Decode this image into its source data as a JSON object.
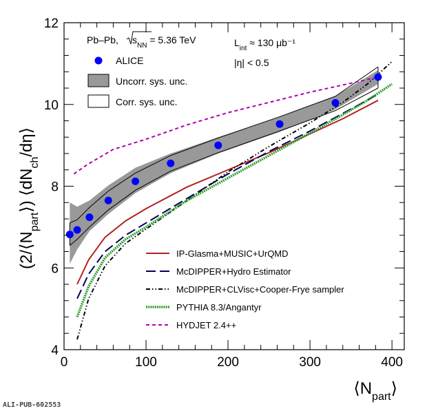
{
  "chart_data": {
    "type": "line",
    "title": "",
    "system_label": "Pb–Pb,",
    "energy_label": "s_NN = 5.36 TeV",
    "lumi_label": "L_int ≈ 130 μb⁻¹",
    "eta_label": "|η| < 0.5",
    "xlabel": "⟨N_part⟩",
    "ylabel": "(2/⟨N_part⟩) ⟨dN_ch/dη⟩",
    "xlim": [
      0,
      415
    ],
    "ylim": [
      4,
      12
    ],
    "x_ticks": [
      0,
      100,
      200,
      300,
      400
    ],
    "y_ticks": [
      4,
      6,
      8,
      10,
      12
    ],
    "grid": false,
    "legend_position": "top-left",
    "alice": {
      "name": "ALICE",
      "color": "#0000ff",
      "x": [
        7,
        16,
        31,
        54,
        87,
        130,
        188,
        263,
        331,
        383
      ],
      "y": [
        6.82,
        6.93,
        7.24,
        7.65,
        8.12,
        8.56,
        9.0,
        9.52,
        10.04,
        10.67
      ]
    },
    "uncorr_band": {
      "name": "Uncorr. sys. unc.",
      "color": "#999999",
      "x": [
        7,
        16,
        31,
        54,
        87,
        130,
        188,
        263,
        331,
        383
      ],
      "low": [
        6.1,
        6.45,
        6.9,
        7.32,
        7.83,
        8.32,
        8.8,
        9.33,
        9.88,
        10.5
      ],
      "high": [
        7.6,
        7.5,
        7.65,
        8.02,
        8.45,
        8.8,
        9.2,
        9.7,
        10.2,
        10.84
      ]
    },
    "corr_band": {
      "name": "Corr. sys. unc.",
      "x": [
        7,
        16,
        31,
        54,
        87,
        130,
        188,
        263,
        331,
        383
      ],
      "low": [
        6.55,
        6.7,
        7.0,
        7.42,
        7.9,
        8.37,
        8.82,
        9.35,
        9.85,
        10.4
      ],
      "high": [
        7.1,
        7.18,
        7.48,
        7.88,
        8.32,
        8.75,
        9.18,
        9.7,
        10.2,
        10.92
      ]
    },
    "series": [
      {
        "name": "IP-Glasma+MUSIC+UrQMD",
        "color": "#b22222",
        "style": "solid",
        "x": [
          16,
          30,
          50,
          75,
          100,
          150,
          200,
          250,
          300,
          340,
          383
        ],
        "y": [
          5.6,
          6.2,
          6.75,
          7.15,
          7.45,
          7.98,
          8.4,
          8.82,
          9.28,
          9.65,
          10.1
        ]
      },
      {
        "name": "McDIPPER+Hydro Estimator",
        "color": "#00005a",
        "style": "longdash",
        "x": [
          16,
          30,
          50,
          75,
          100,
          150,
          200,
          250,
          300,
          340,
          383
        ],
        "y": [
          5.25,
          5.85,
          6.4,
          6.8,
          7.1,
          7.7,
          8.3,
          8.85,
          9.35,
          9.78,
          10.25
        ]
      },
      {
        "name": "McDIPPER+CLVisc+Cooper-Frye sampler",
        "color": "#000000",
        "style": "dashdotdot",
        "x": [
          16,
          30,
          50,
          75,
          100,
          150,
          200,
          250,
          300,
          340,
          370,
          400
        ],
        "y": [
          4.25,
          5.25,
          6.05,
          6.6,
          6.95,
          7.65,
          8.35,
          8.97,
          9.55,
          10.05,
          10.5,
          11.05
        ]
      },
      {
        "name": "PYTHIA 8.3/Angantyr",
        "color": "#2e9e2e",
        "style": "dotted",
        "x": [
          16,
          30,
          50,
          75,
          100,
          150,
          200,
          250,
          300,
          340,
          370,
          400
        ],
        "y": [
          4.8,
          5.55,
          6.25,
          6.7,
          7.0,
          7.65,
          8.2,
          8.75,
          9.3,
          9.75,
          10.1,
          10.5
        ]
      },
      {
        "name": "HYDJET 2.4++",
        "color": "#b000b0",
        "style": "shortdash",
        "x": [
          12,
          30,
          60,
          100,
          150,
          200,
          250,
          300,
          350,
          383
        ],
        "y": [
          8.3,
          8.55,
          8.9,
          9.15,
          9.5,
          9.8,
          10.05,
          10.3,
          10.52,
          10.67
        ]
      }
    ]
  },
  "footer": {
    "pub_id": "ALI-PUB-602553"
  }
}
